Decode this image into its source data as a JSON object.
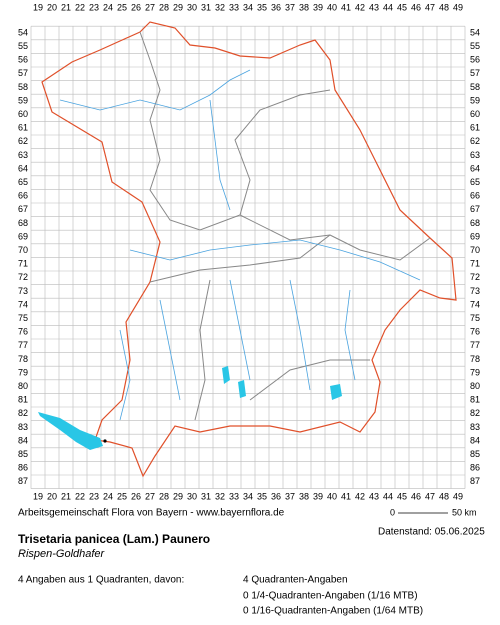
{
  "map": {
    "columns": [
      "19",
      "20",
      "21",
      "22",
      "23",
      "24",
      "25",
      "26",
      "27",
      "28",
      "29",
      "30",
      "31",
      "32",
      "33",
      "34",
      "35",
      "36",
      "37",
      "38",
      "39",
      "40",
      "41",
      "42",
      "43",
      "44",
      "45",
      "46",
      "47",
      "48",
      "49"
    ],
    "rows": [
      "54",
      "55",
      "56",
      "57",
      "58",
      "59",
      "60",
      "61",
      "62",
      "63",
      "64",
      "65",
      "66",
      "67",
      "68",
      "69",
      "70",
      "71",
      "72",
      "73",
      "74",
      "75",
      "76",
      "77",
      "78",
      "79",
      "80",
      "81",
      "82",
      "83",
      "84",
      "85",
      "86",
      "87"
    ],
    "scale_start": "0",
    "scale_end": "50 km"
  },
  "footer": {
    "credit": "Arbeitsgemeinschaft Flora von Bayern - www.bayernflora.de",
    "date": "Datenstand: 05.06.2025",
    "species": "Trisetaria panicea (Lam.) Paunero",
    "common_name": "Rispen-Goldhafer",
    "summary": "4 Angaben aus 1 Quadranten, davon:",
    "counts": [
      "4 Quadranten-Angaben",
      "0 1/4-Quadranten-Angaben (1/16 MTB)",
      "0 1/16-Quadranten-Angaben (1/64 MTB)"
    ]
  }
}
